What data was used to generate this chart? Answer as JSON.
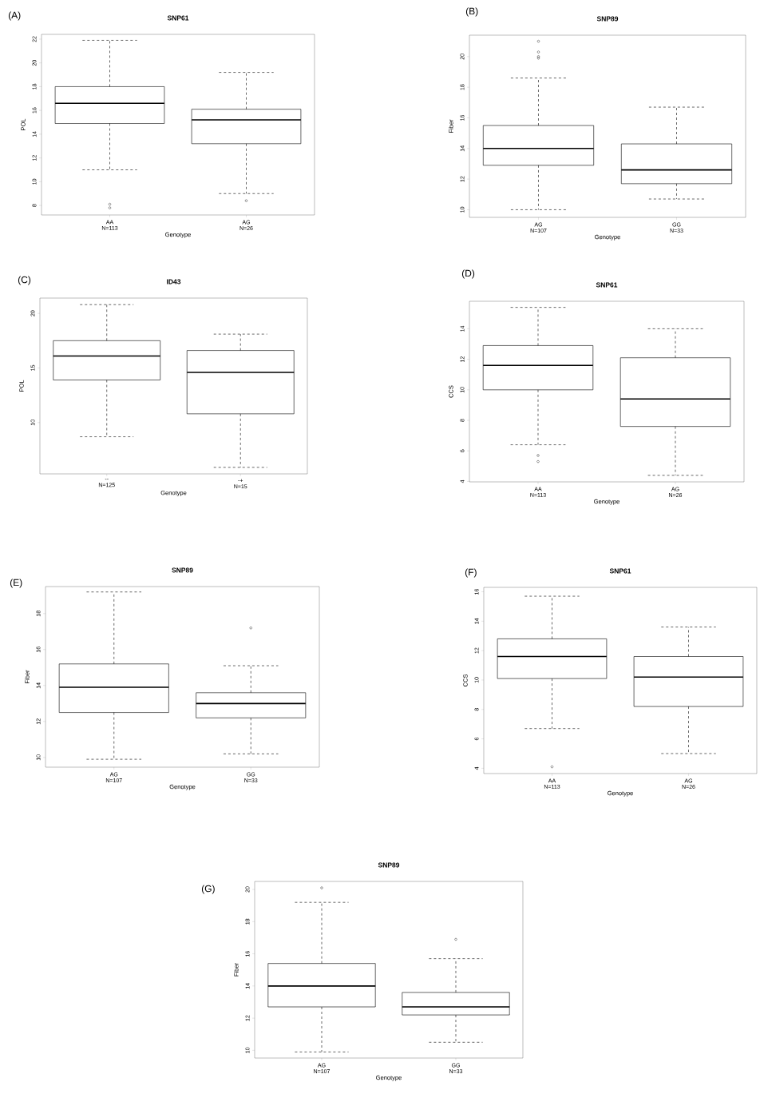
{
  "chart_data": [
    {
      "type": "box",
      "title": "SNP61",
      "xlabel": "Genotype",
      "ylabel": "POL",
      "categories": [
        "AA",
        "AG"
      ],
      "ylim": [
        7.2,
        22.4
      ],
      "yticks": [
        8,
        10,
        12,
        14,
        16,
        18,
        20,
        22
      ],
      "annotations": [
        "(A)",
        "N=113",
        "N=26"
      ],
      "boxes": [
        {
          "low": 11.0,
          "q1": 14.9,
          "median": 16.6,
          "q3": 18.0,
          "high": 21.9,
          "outliers": [
            8.1,
            7.8
          ]
        },
        {
          "low": 9.0,
          "q1": 13.2,
          "median": 15.2,
          "q3": 16.1,
          "high": 19.2,
          "outliers": [
            8.4
          ]
        }
      ]
    },
    {
      "type": "box",
      "title": "SNP89",
      "xlabel": "Genotype",
      "ylabel": "Fiber",
      "categories": [
        "AG",
        "GG"
      ],
      "ylim": [
        9.5,
        21.4
      ],
      "yticks": [
        10,
        12,
        14,
        16,
        18,
        20
      ],
      "annotations": [
        "(B)",
        "N=107",
        "N=33"
      ],
      "boxes": [
        {
          "low": 10.0,
          "q1": 12.9,
          "median": 14.0,
          "q3": 15.5,
          "high": 18.6,
          "outliers": [
            21.0,
            20.3,
            20.0,
            19.9
          ]
        },
        {
          "low": 10.7,
          "q1": 11.7,
          "median": 12.6,
          "q3": 14.3,
          "high": 16.7
        }
      ]
    },
    {
      "type": "box",
      "title": "ID43",
      "xlabel": "Genotype",
      "ylabel": "POL",
      "categories": [
        "--",
        "-+"
      ],
      "ylim": [
        5.3,
        21.4
      ],
      "yticks": [
        10,
        15,
        20
      ],
      "annotations": [
        "(C)",
        "N=125",
        "N=15"
      ],
      "boxes": [
        {
          "low": 8.7,
          "q1": 13.9,
          "median": 16.1,
          "q3": 17.5,
          "high": 20.8
        },
        {
          "low": 5.9,
          "q1": 10.8,
          "median": 14.6,
          "q3": 16.6,
          "high": 18.1
        }
      ]
    },
    {
      "type": "box",
      "title": "SNP61",
      "xlabel": "Genotype",
      "ylabel": "CCS",
      "categories": [
        "AA",
        "AG"
      ],
      "ylim": [
        3.97,
        15.8
      ],
      "yticks": [
        4,
        6,
        8,
        10,
        12,
        14
      ],
      "annotations": [
        "(D)",
        "N=113",
        "N=26"
      ],
      "boxes": [
        {
          "low": 6.4,
          "q1": 10.0,
          "median": 11.6,
          "q3": 12.9,
          "high": 15.4,
          "outliers": [
            5.7,
            5.3
          ]
        },
        {
          "low": 4.4,
          "q1": 7.6,
          "median": 9.4,
          "q3": 12.1,
          "high": 14.0
        }
      ]
    },
    {
      "type": "box",
      "title": "SNP89",
      "xlabel": "Genotype",
      "ylabel": "Fiber",
      "categories": [
        "AG",
        "GG"
      ],
      "ylim": [
        9.46,
        19.5
      ],
      "yticks": [
        10,
        12,
        14,
        16,
        18
      ],
      "annotations": [
        "(E)",
        "N=107",
        "N=33"
      ],
      "boxes": [
        {
          "low": 9.9,
          "q1": 12.5,
          "median": 13.9,
          "q3": 15.2,
          "high": 19.2
        },
        {
          "low": 10.2,
          "q1": 12.2,
          "median": 13.0,
          "q3": 13.6,
          "high": 15.1,
          "outliers": [
            17.2
          ]
        }
      ]
    },
    {
      "type": "box",
      "title": "SNP61",
      "xlabel": "Genotype",
      "ylabel": "CCS",
      "categories": [
        "AA",
        "AG"
      ],
      "ylim": [
        3.64,
        16.3
      ],
      "yticks": [
        4,
        6,
        8,
        10,
        12,
        14,
        16
      ],
      "annotations": [
        "(F)",
        "N=113",
        "N=26"
      ],
      "boxes": [
        {
          "low": 6.7,
          "q1": 10.1,
          "median": 11.6,
          "q3": 12.8,
          "high": 15.7,
          "outliers": [
            4.1
          ]
        },
        {
          "low": 5.0,
          "q1": 8.2,
          "median": 10.2,
          "q3": 11.6,
          "high": 13.6
        }
      ]
    },
    {
      "type": "box",
      "title": "SNP89",
      "xlabel": "Genotype",
      "ylabel": "Fiber",
      "categories": [
        "AG",
        "GG"
      ],
      "ylim": [
        9.52,
        20.5
      ],
      "yticks": [
        10,
        12,
        14,
        16,
        18,
        20
      ],
      "annotations": [
        "(G)",
        "N=107",
        "N=33"
      ],
      "boxes": [
        {
          "low": 9.9,
          "q1": 12.7,
          "median": 14.0,
          "q3": 15.4,
          "high": 19.2,
          "outliers": [
            20.1
          ]
        },
        {
          "low": 10.5,
          "q1": 12.2,
          "median": 12.7,
          "q3": 13.6,
          "high": 15.7,
          "outliers": [
            16.9
          ]
        }
      ]
    }
  ]
}
